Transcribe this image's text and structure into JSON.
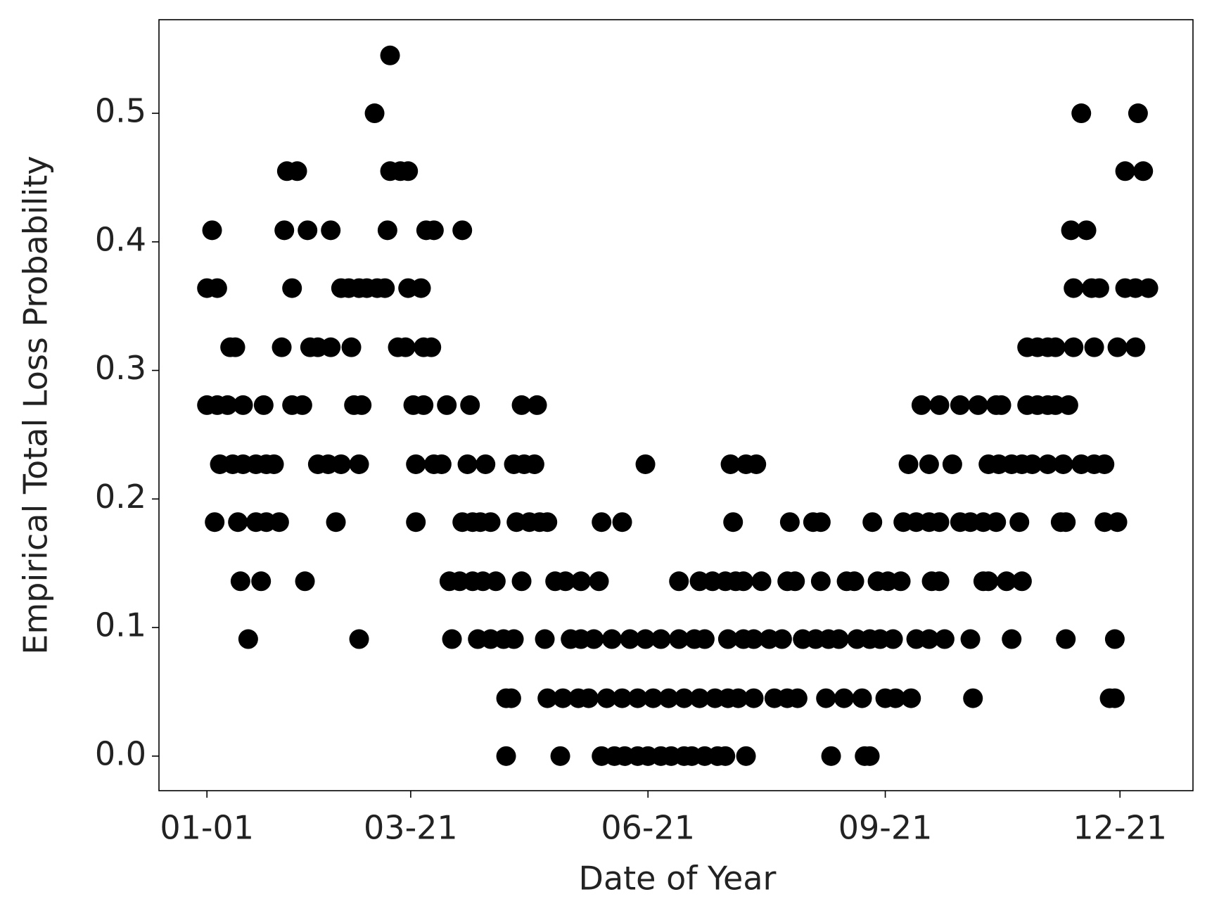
{
  "chart_data": {
    "type": "scatter",
    "x_label": "Date of Year",
    "y_label": "Empirical Total Loss Probability",
    "color": "#000000",
    "xlim": [
      -17.6,
      383.3
    ],
    "ylim": [
      -0.0269,
      0.5728
    ],
    "xticks": [
      {
        "value": 1,
        "label": "01-01"
      },
      {
        "value": 80,
        "label": "03-21"
      },
      {
        "value": 172,
        "label": "06-21"
      },
      {
        "value": 264,
        "label": "09-21"
      },
      {
        "value": 355,
        "label": "12-21"
      }
    ],
    "yticks": [
      {
        "value": 0,
        "label": "0.0"
      },
      0.1,
      0.2,
      0.3,
      0.4,
      0.5
    ],
    "x": [
      72,
      66,
      340,
      362,
      32,
      36,
      72,
      76,
      79,
      357,
      364,
      3,
      31,
      40,
      49,
      71,
      86,
      89,
      100,
      336,
      342,
      1,
      5,
      34,
      53,
      56,
      60,
      63,
      67,
      70,
      79,
      84,
      337,
      344,
      347,
      357,
      361,
      366,
      10,
      12,
      30,
      41,
      44,
      49,
      57,
      75,
      78,
      85,
      88,
      319,
      323,
      327,
      330,
      337,
      345,
      354,
      361,
      1,
      5,
      9,
      15,
      23,
      34,
      38,
      58,
      61,
      81,
      85,
      94,
      103,
      123,
      129,
      278,
      285,
      293,
      300,
      307,
      309,
      319,
      323,
      327,
      330,
      335,
      6,
      11,
      15,
      20,
      24,
      27,
      44,
      48,
      53,
      60,
      82,
      89,
      92,
      102,
      109,
      120,
      124,
      128,
      171,
      204,
      210,
      214,
      273,
      281,
      290,
      304,
      308,
      313,
      317,
      321,
      327,
      333,
      340,
      345,
      349,
      4,
      13,
      20,
      24,
      29,
      51,
      82,
      100,
      104,
      107,
      111,
      121,
      126,
      130,
      133,
      154,
      162,
      205,
      227,
      236,
      239,
      259,
      271,
      276,
      281,
      285,
      293,
      297,
      302,
      307,
      316,
      332,
      334,
      349,
      354,
      14,
      22,
      39,
      95,
      99,
      104,
      108,
      113,
      123,
      136,
      140,
      146,
      153,
      184,
      192,
      197,
      202,
      206,
      209,
      216,
      226,
      229,
      239,
      249,
      252,
      261,
      265,
      270,
      282,
      285,
      302,
      304,
      311,
      317,
      17,
      60,
      96,
      106,
      111,
      116,
      120,
      132,
      142,
      146,
      151,
      158,
      165,
      171,
      177,
      184,
      190,
      194,
      203,
      209,
      213,
      219,
      224,
      232,
      237,
      242,
      246,
      253,
      258,
      262,
      267,
      276,
      281,
      287,
      297,
      313,
      334,
      353,
      117,
      119,
      133,
      139,
      145,
      149,
      156,
      162,
      168,
      174,
      180,
      186,
      192,
      198,
      203,
      207,
      213,
      221,
      226,
      230,
      241,
      248,
      255,
      264,
      268,
      274,
      298,
      351,
      353,
      117,
      138,
      154,
      159,
      163,
      168,
      172,
      177,
      181,
      186,
      189,
      194,
      199,
      202,
      210,
      243,
      256,
      258
    ],
    "values": [
      0.545,
      0.5,
      0.5,
      0.5,
      0.455,
      0.455,
      0.455,
      0.455,
      0.455,
      0.455,
      0.455,
      0.409,
      0.409,
      0.409,
      0.409,
      0.409,
      0.409,
      0.409,
      0.409,
      0.409,
      0.409,
      0.364,
      0.364,
      0.364,
      0.364,
      0.364,
      0.364,
      0.364,
      0.364,
      0.364,
      0.364,
      0.364,
      0.364,
      0.364,
      0.364,
      0.364,
      0.364,
      0.364,
      0.318,
      0.318,
      0.318,
      0.318,
      0.318,
      0.318,
      0.318,
      0.318,
      0.318,
      0.318,
      0.318,
      0.318,
      0.318,
      0.318,
      0.318,
      0.318,
      0.318,
      0.318,
      0.318,
      0.273,
      0.273,
      0.273,
      0.273,
      0.273,
      0.273,
      0.273,
      0.273,
      0.273,
      0.273,
      0.273,
      0.273,
      0.273,
      0.273,
      0.273,
      0.273,
      0.273,
      0.273,
      0.273,
      0.273,
      0.273,
      0.273,
      0.273,
      0.273,
      0.273,
      0.273,
      0.227,
      0.227,
      0.227,
      0.227,
      0.227,
      0.227,
      0.227,
      0.227,
      0.227,
      0.227,
      0.227,
      0.227,
      0.227,
      0.227,
      0.227,
      0.227,
      0.227,
      0.227,
      0.227,
      0.227,
      0.227,
      0.227,
      0.227,
      0.227,
      0.227,
      0.227,
      0.227,
      0.227,
      0.227,
      0.227,
      0.227,
      0.227,
      0.227,
      0.227,
      0.227,
      0.182,
      0.182,
      0.182,
      0.182,
      0.182,
      0.182,
      0.182,
      0.182,
      0.182,
      0.182,
      0.182,
      0.182,
      0.182,
      0.182,
      0.182,
      0.182,
      0.182,
      0.182,
      0.182,
      0.182,
      0.182,
      0.182,
      0.182,
      0.182,
      0.182,
      0.182,
      0.182,
      0.182,
      0.182,
      0.182,
      0.182,
      0.182,
      0.182,
      0.182,
      0.182,
      0.136,
      0.136,
      0.136,
      0.136,
      0.136,
      0.136,
      0.136,
      0.136,
      0.136,
      0.136,
      0.136,
      0.136,
      0.136,
      0.136,
      0.136,
      0.136,
      0.136,
      0.136,
      0.136,
      0.136,
      0.136,
      0.136,
      0.136,
      0.136,
      0.136,
      0.136,
      0.136,
      0.136,
      0.136,
      0.136,
      0.136,
      0.136,
      0.136,
      0.136,
      0.091,
      0.091,
      0.091,
      0.091,
      0.091,
      0.091,
      0.091,
      0.091,
      0.091,
      0.091,
      0.091,
      0.091,
      0.091,
      0.091,
      0.091,
      0.091,
      0.091,
      0.091,
      0.091,
      0.091,
      0.091,
      0.091,
      0.091,
      0.091,
      0.091,
      0.091,
      0.091,
      0.091,
      0.091,
      0.091,
      0.091,
      0.091,
      0.091,
      0.091,
      0.091,
      0.091,
      0.091,
      0.091,
      0.045,
      0.045,
      0.045,
      0.045,
      0.045,
      0.045,
      0.045,
      0.045,
      0.045,
      0.045,
      0.045,
      0.045,
      0.045,
      0.045,
      0.045,
      0.045,
      0.045,
      0.045,
      0.045,
      0.045,
      0.045,
      0.045,
      0.045,
      0.045,
      0.045,
      0.045,
      0.045,
      0.045,
      0.045,
      0,
      0,
      0,
      0,
      0,
      0,
      0,
      0,
      0,
      0,
      0,
      0,
      0,
      0,
      0,
      0,
      0,
      0
    ]
  }
}
